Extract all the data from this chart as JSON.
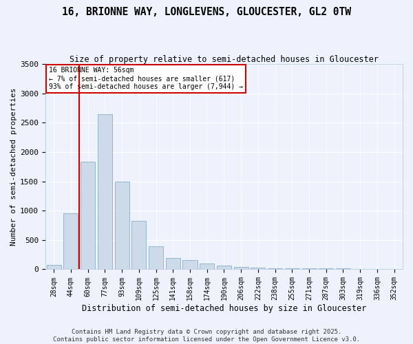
{
  "title": "16, BRIONNE WAY, LONGLEVENS, GLOUCESTER, GL2 0TW",
  "subtitle": "Size of property relative to semi-detached houses in Gloucester",
  "xlabel": "Distribution of semi-detached houses by size in Gloucester",
  "ylabel": "Number of semi-detached properties",
  "categories": [
    "28sqm",
    "44sqm",
    "60sqm",
    "77sqm",
    "93sqm",
    "109sqm",
    "125sqm",
    "141sqm",
    "158sqm",
    "174sqm",
    "190sqm",
    "206sqm",
    "222sqm",
    "238sqm",
    "255sqm",
    "271sqm",
    "287sqm",
    "303sqm",
    "319sqm",
    "336sqm",
    "352sqm"
  ],
  "values": [
    75,
    960,
    1840,
    2640,
    1490,
    830,
    390,
    190,
    155,
    105,
    60,
    40,
    28,
    20,
    15,
    22,
    12,
    15,
    10,
    5,
    10
  ],
  "bar_color": "#cddaea",
  "bar_edge_color": "#8aafc8",
  "vline_x_index": 2,
  "annotation_title": "16 BRIONNE WAY: 56sqm",
  "annotation_line1": "← 7% of semi-detached houses are smaller (617)",
  "annotation_line2": "93% of semi-detached houses are larger (7,944) →",
  "ylim": [
    0,
    3500
  ],
  "yticks": [
    0,
    500,
    1000,
    1500,
    2000,
    2500,
    3000,
    3500
  ],
  "footer_line1": "Contains HM Land Registry data © Crown copyright and database right 2025.",
  "footer_line2": "Contains public sector information licensed under the Open Government Licence v3.0.",
  "bg_color": "#eef2fc",
  "grid_color": "#ffffff",
  "title_fontsize": 10.5,
  "subtitle_fontsize": 8.5,
  "axis_label_fontsize": 8,
  "tick_fontsize": 7,
  "footer_fontsize": 6.5
}
